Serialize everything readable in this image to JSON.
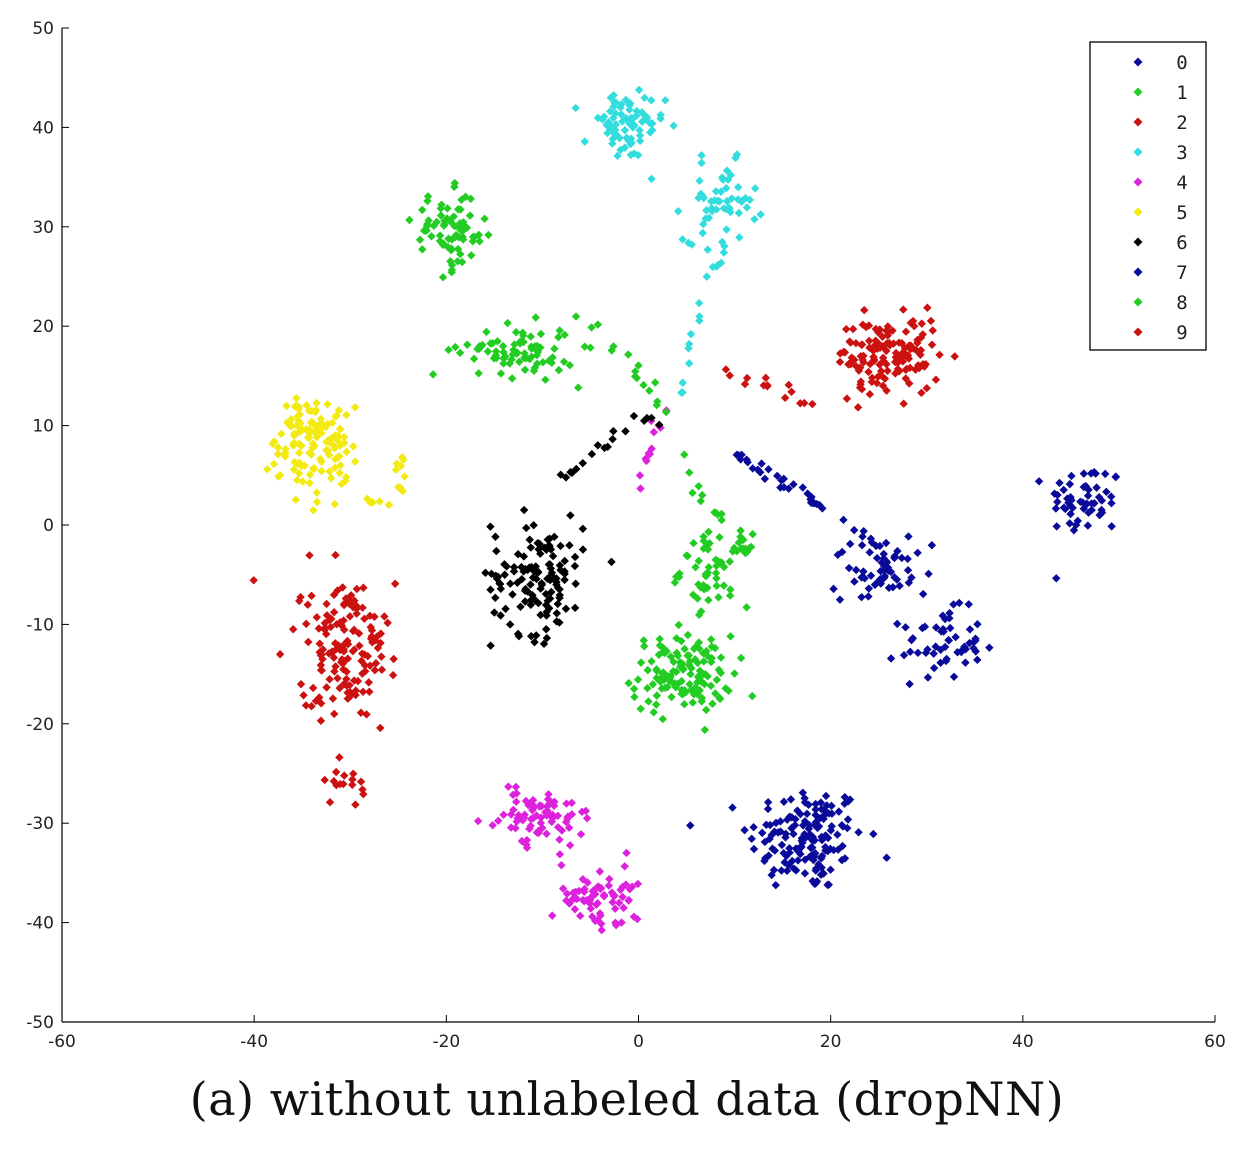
{
  "caption": "(a) without unlabeled data (dropNN)",
  "chart_data": {
    "type": "scatter",
    "title": "",
    "xlabel": "",
    "ylabel": "",
    "xlim": [
      -60,
      60
    ],
    "ylim": [
      -50,
      50
    ],
    "xticks": [
      -60,
      -40,
      -20,
      0,
      20,
      40,
      60
    ],
    "yticks": [
      -50,
      -40,
      -30,
      -20,
      -10,
      0,
      10,
      20,
      30,
      40,
      50
    ],
    "marker": "diamond",
    "grid": false,
    "legend_position": "top-right",
    "series": [
      {
        "name": "0",
        "color": "#0a0a9a",
        "clusters": [
          {
            "center": [
              17.5,
              -31.5
            ],
            "spread": [
              4.0,
              3.6
            ],
            "count": 150
          },
          {
            "center": [
              46.5,
              2.5
            ],
            "spread": [
              2.6,
              2.5
            ],
            "count": 55
          },
          {
            "center": [
              31.5,
              -12.0
            ],
            "spread": [
              2.8,
              2.3
            ],
            "count": 55
          }
        ],
        "paths": [
          {
            "points": [
              [
                10,
                7
              ],
              [
                16,
                4
              ],
              [
                21,
                1
              ],
              [
                25,
                -3
              ]
            ],
            "count": 24
          }
        ]
      },
      {
        "name": "1",
        "color": "#22cc22",
        "clusters": [
          {
            "center": [
              4.5,
              -15.0
            ],
            "spread": [
              3.5,
              2.6
            ],
            "count": 130
          },
          {
            "center": [
              8.0,
              -4.5
            ],
            "spread": [
              2.4,
              2.4
            ],
            "count": 55
          }
        ],
        "paths": [
          {
            "points": [
              [
                4,
                8
              ],
              [
                6,
                3
              ],
              [
                9,
                1
              ],
              [
                12,
                -3
              ]
            ],
            "count": 18
          }
        ]
      },
      {
        "name": "2",
        "color": "#cc1111",
        "clusters": [
          {
            "center": [
              -30.5,
              -12.5
            ],
            "spread": [
              3.3,
              4.2
            ],
            "count": 140
          },
          {
            "center": [
              -30.5,
              -26.0
            ],
            "spread": [
              1.5,
              1.2
            ],
            "count": 16
          }
        ],
        "paths": [
          {
            "points": [
              [
                -31,
                -7
              ],
              [
                -28,
                -9
              ]
            ],
            "count": 10
          }
        ]
      },
      {
        "name": "3",
        "color": "#33dddd",
        "clusters": [
          {
            "center": [
              -1.5,
              40.0
            ],
            "spread": [
              2.8,
              2.3
            ],
            "count": 75
          },
          {
            "center": [
              8.5,
              32.5
            ],
            "spread": [
              2.5,
              2.6
            ],
            "count": 55
          }
        ],
        "paths": [
          {
            "points": [
              [
                4,
                12
              ],
              [
                5,
                18
              ],
              [
                7,
                24
              ],
              [
                9,
                28
              ]
            ],
            "count": 18
          }
        ]
      },
      {
        "name": "4",
        "color": "#dd22dd",
        "clusters": [
          {
            "center": [
              -10.0,
              -29.5
            ],
            "spread": [
              3.4,
              1.9
            ],
            "count": 80
          },
          {
            "center": [
              -4.0,
              -37.5
            ],
            "spread": [
              3.0,
              1.9
            ],
            "count": 70
          }
        ],
        "paths": [
          {
            "points": [
              [
                3,
                12
              ],
              [
                1,
                8
              ],
              [
                0,
                4
              ]
            ],
            "count": 12
          }
        ]
      },
      {
        "name": "5",
        "color": "#f2ea10",
        "clusters": [
          {
            "center": [
              -34.0,
              8.5
            ],
            "spread": [
              2.9,
              3.5
            ],
            "count": 130
          }
        ],
        "paths": [
          {
            "points": [
              [
                -29,
                3
              ],
              [
                -26,
                2.5
              ],
              [
                -24,
                4
              ],
              [
                -25,
                7
              ]
            ],
            "count": 14
          }
        ]
      },
      {
        "name": "6",
        "color": "#000000",
        "clusters": [
          {
            "center": [
              -10.5,
              -5.0
            ],
            "spread": [
              3.2,
              4.0
            ],
            "count": 130
          }
        ],
        "paths": [
          {
            "points": [
              [
                3,
                11
              ],
              [
                -1,
                10
              ],
              [
                -5,
                7
              ],
              [
                -8,
                5
              ]
            ],
            "count": 18
          }
        ]
      },
      {
        "name": "7",
        "color": "#0a0a9a",
        "clusters": [
          {
            "center": [
              25.5,
              -4.5
            ],
            "spread": [
              2.6,
              2.3
            ],
            "count": 60
          }
        ],
        "paths": [
          {
            "points": [
              [
                10,
                7
              ],
              [
                17,
                3
              ],
              [
                22,
                0
              ],
              [
                25,
                -2
              ]
            ],
            "count": 14
          }
        ]
      },
      {
        "name": "8",
        "color": "#22cc22",
        "clusters": [
          {
            "center": [
              -19.5,
              29.5
            ],
            "spread": [
              2.6,
              2.6
            ],
            "count": 75
          },
          {
            "center": [
              -12.5,
              17.5
            ],
            "spread": [
              4.0,
              1.7
            ],
            "count": 80
          }
        ],
        "paths": [
          {
            "points": [
              [
                -6,
                21
              ],
              [
                -2,
                18
              ],
              [
                1,
                14
              ],
              [
                3,
                11
              ]
            ],
            "count": 16
          }
        ]
      },
      {
        "name": "9",
        "color": "#cc1111",
        "clusters": [
          {
            "center": [
              26.0,
              17.0
            ],
            "spread": [
              3.6,
              2.6
            ],
            "count": 140
          }
        ],
        "paths": [
          {
            "points": [
              [
                9,
                15
              ],
              [
                14,
                14
              ],
              [
                18,
                12
              ]
            ],
            "count": 14
          }
        ]
      }
    ]
  }
}
